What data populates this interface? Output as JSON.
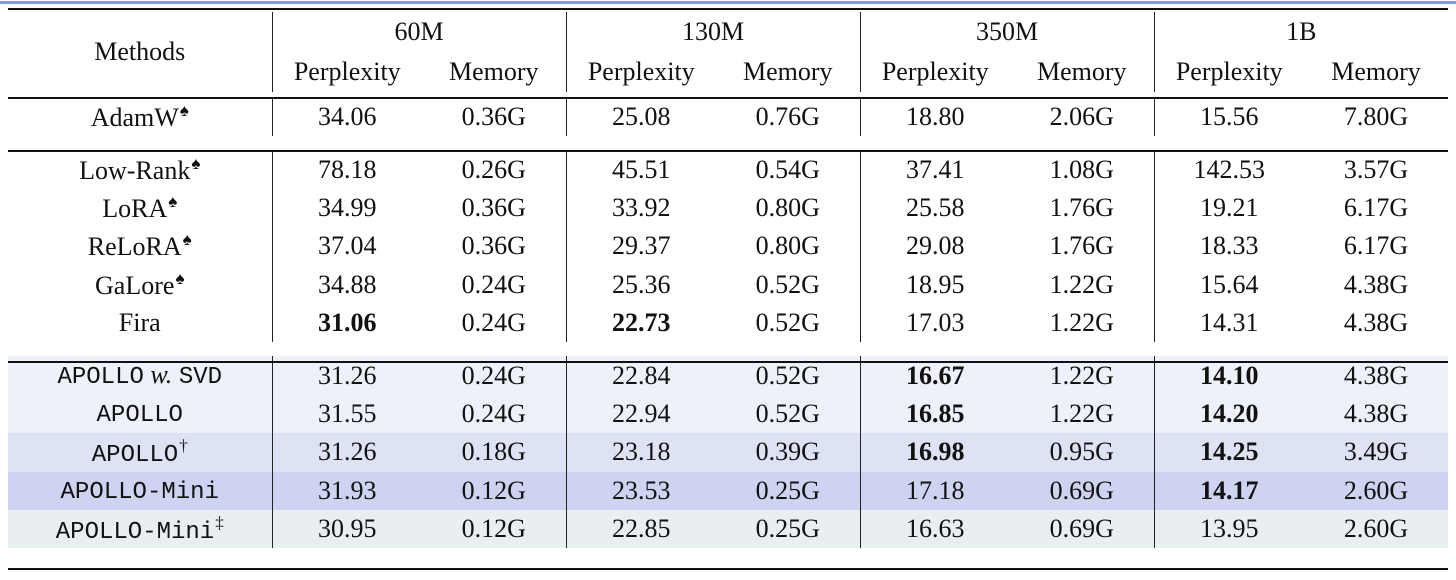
{
  "header": {
    "methods_label": "Methods",
    "sizes": [
      "60M",
      "130M",
      "350M",
      "1B"
    ],
    "sub_labels": [
      "Perplexity",
      "Memory"
    ]
  },
  "groups": [
    {
      "rows": [
        {
          "method": "AdamW",
          "sup": "♠",
          "mono": false,
          "cells": [
            "34.06",
            "0.36G",
            "25.08",
            "0.76G",
            "18.80",
            "2.06G",
            "15.56",
            "7.80G"
          ],
          "bold": []
        }
      ]
    },
    {
      "rows": [
        {
          "method": "Low-Rank",
          "sup": "♠",
          "mono": false,
          "cells": [
            "78.18",
            "0.26G",
            "45.51",
            "0.54G",
            "37.41",
            "1.08G",
            "142.53",
            "3.57G"
          ],
          "bold": []
        },
        {
          "method": "LoRA",
          "sup": "♠",
          "mono": false,
          "cells": [
            "34.99",
            "0.36G",
            "33.92",
            "0.80G",
            "25.58",
            "1.76G",
            "19.21",
            "6.17G"
          ],
          "bold": []
        },
        {
          "method": "ReLoRA",
          "sup": "♠",
          "mono": false,
          "cells": [
            "37.04",
            "0.36G",
            "29.37",
            "0.80G",
            "29.08",
            "1.76G",
            "18.33",
            "6.17G"
          ],
          "bold": []
        },
        {
          "method": "GaLore",
          "sup": "♠",
          "mono": false,
          "cells": [
            "34.88",
            "0.24G",
            "25.36",
            "0.52G",
            "18.95",
            "1.22G",
            "15.64",
            "4.38G"
          ],
          "bold": []
        },
        {
          "method": "Fira",
          "sup": "",
          "mono": false,
          "cells": [
            "31.06",
            "0.24G",
            "22.73",
            "0.52G",
            "17.03",
            "1.22G",
            "14.31",
            "4.38G"
          ],
          "bold": [
            0,
            2
          ]
        }
      ]
    },
    {
      "rows": [
        {
          "method": "APOLLO",
          "method_it": "w.",
          "method_tail": "SVD",
          "sup": "",
          "mono": true,
          "bg": "bgA",
          "cells": [
            "31.26",
            "0.24G",
            "22.84",
            "0.52G",
            "16.67",
            "1.22G",
            "14.10",
            "4.38G"
          ],
          "bold": [
            4,
            6
          ]
        },
        {
          "method": "APOLLO",
          "sup": "",
          "mono": true,
          "bg": "bgA",
          "cells": [
            "31.55",
            "0.24G",
            "22.94",
            "0.52G",
            "16.85",
            "1.22G",
            "14.20",
            "4.38G"
          ],
          "bold": [
            4,
            6
          ]
        },
        {
          "method": "APOLLO",
          "sup": "†",
          "mono": true,
          "bg": "bgB",
          "cells": [
            "31.26",
            "0.18G",
            "23.18",
            "0.39G",
            "16.98",
            "0.95G",
            "14.25",
            "3.49G"
          ],
          "bold": [
            4,
            6
          ]
        },
        {
          "method": "APOLLO-Mini",
          "sup": "",
          "mono": true,
          "bg": "bgC",
          "cells": [
            "31.93",
            "0.12G",
            "23.53",
            "0.25G",
            "17.18",
            "0.69G",
            "14.17",
            "2.60G"
          ],
          "bold": [
            6
          ]
        },
        {
          "method": "APOLLO-Mini",
          "sup": "‡",
          "mono": true,
          "bg": "bgD",
          "cells": [
            "30.95",
            "0.12G",
            "22.85",
            "0.25G",
            "16.63",
            "0.69G",
            "13.95",
            "2.60G"
          ],
          "bold": []
        }
      ]
    }
  ]
}
